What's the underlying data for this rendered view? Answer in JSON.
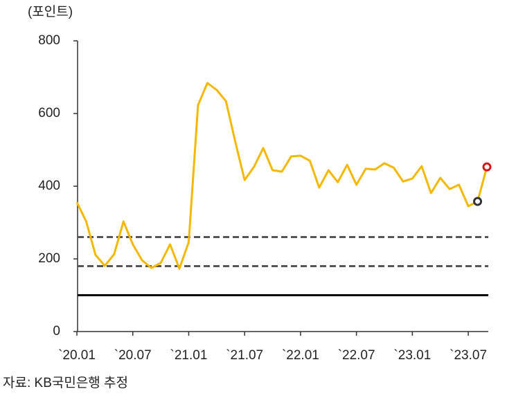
{
  "chart_data": {
    "type": "line",
    "y_label": "(포인트)",
    "source": "자료: KB국민은행 추정",
    "categories": [
      "`20.01",
      null,
      null,
      null,
      null,
      null,
      "`20.07",
      null,
      null,
      null,
      null,
      null,
      "`21.01",
      null,
      null,
      null,
      null,
      null,
      "`21.07",
      null,
      null,
      null,
      null,
      null,
      "`22.01",
      null,
      null,
      null,
      null,
      null,
      "`22.07",
      null,
      null,
      null,
      null,
      null,
      "`23.01",
      null,
      null,
      null,
      null,
      null,
      "`23.07",
      null,
      null
    ],
    "series": [
      {
        "color": "#f5b800",
        "values": [
          356,
          303,
          211,
          181,
          213,
          303,
          240,
          196,
          175,
          189,
          240,
          173,
          246,
          623,
          684,
          665,
          634,
          522,
          417,
          453,
          505,
          444,
          440,
          482,
          484,
          470,
          396,
          444,
          411,
          459,
          404,
          448,
          446,
          463,
          451,
          413,
          421,
          455,
          381,
          423,
          392,
          404,
          345,
          358,
          453
        ]
      }
    ],
    "markers": [
      {
        "index": 43,
        "color": "#333333"
      },
      {
        "index": 44,
        "color": "#d7141a"
      }
    ],
    "reference_lines": [
      {
        "value": 260,
        "style": "dashed",
        "color": "#555555"
      },
      {
        "value": 180,
        "style": "dashed",
        "color": "#555555"
      },
      {
        "value": 100,
        "style": "solid",
        "color": "#000000"
      }
    ],
    "ylim": [
      0,
      800
    ],
    "yticks": [
      0,
      200,
      400,
      600,
      800
    ],
    "grid": false
  }
}
